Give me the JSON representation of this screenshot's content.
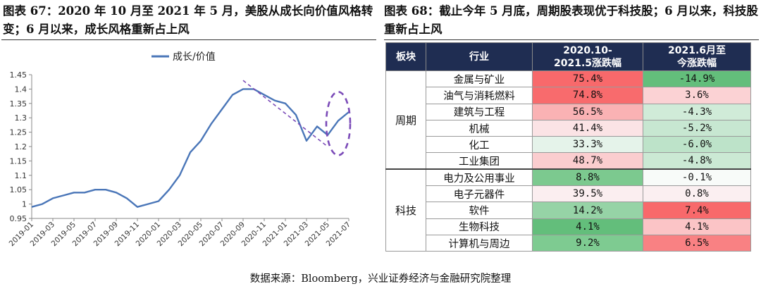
{
  "left_figure": {
    "title": "图表 67：2020 年 10 月至 2021 年 5 月，美股从成长向价值风格转变；6 月以来，成长风格重新占上风"
  },
  "right_figure": {
    "title": "图表 68：截止今年 5 月底，周期股表现优于科技股；6 月以来，科技股重新占上风"
  },
  "chart_data": {
    "type": "line",
    "legend": {
      "position": "top-center",
      "entries": [
        "成长/价值"
      ]
    },
    "x": [
      "2019-01",
      "2019-02",
      "2019-03",
      "2019-04",
      "2019-05",
      "2019-06",
      "2019-07",
      "2019-08",
      "2019-09",
      "2019-10",
      "2019-11",
      "2019-12",
      "2020-01",
      "2020-02",
      "2020-03",
      "2020-04",
      "2020-05",
      "2020-06",
      "2020-07",
      "2020-08",
      "2020-09",
      "2020-10",
      "2020-11",
      "2020-12",
      "2021-01",
      "2021-02",
      "2021-03",
      "2021-04",
      "2021-05",
      "2021-06",
      "2021-07"
    ],
    "series": [
      {
        "name": "成长/价值",
        "color": "#4a76b8",
        "values": [
          0.99,
          1.0,
          1.02,
          1.03,
          1.04,
          1.04,
          1.05,
          1.05,
          1.04,
          1.02,
          0.99,
          1.0,
          1.01,
          1.05,
          1.1,
          1.18,
          1.22,
          1.28,
          1.33,
          1.38,
          1.4,
          1.4,
          1.38,
          1.36,
          1.35,
          1.31,
          1.22,
          1.27,
          1.24,
          1.29,
          1.32
        ]
      }
    ],
    "xlabel": "",
    "ylabel": "",
    "ylim": [
      0.95,
      1.45
    ],
    "yticks": [
      "0.95",
      "1",
      "1.05",
      "1.1",
      "1.15",
      "1.2",
      "1.25",
      "1.3",
      "1.35",
      "1.4",
      "1.45"
    ],
    "xticks": [
      "2019-01",
      "2019-03",
      "2019-05",
      "2019-07",
      "2019-09",
      "2019-11",
      "2020-01",
      "2020-03",
      "2020-05",
      "2020-07",
      "2020-09",
      "2020-11",
      "2021-01",
      "2021-03",
      "2021-05",
      "2021-07"
    ],
    "grid": false,
    "annotations": [
      {
        "type": "dashed-trend-line",
        "color": "#7b4bb8",
        "from": [
          "2020-09",
          1.43
        ],
        "to": [
          "2021-05",
          1.2
        ]
      },
      {
        "type": "dashed-ellipse",
        "color": "#7b4bb8",
        "center": [
          "2021-06",
          1.28
        ],
        "covers": "2021-05 to 2021-07"
      }
    ]
  },
  "table": {
    "headers": [
      "板块",
      "行业",
      "2020.10-\n2021.5涨跌幅",
      "2021.6月至\n今涨跌幅"
    ],
    "groups": [
      {
        "name": "周期",
        "rows": [
          {
            "sector": "金属与矿业",
            "v1": "75.4%",
            "v2": "-14.9%",
            "c1": "#f8696b",
            "c2": "#63be7b"
          },
          {
            "sector": "油气与消耗燃料",
            "v1": "74.8%",
            "v2": "3.6%",
            "c1": "#f86b6d",
            "c2": "#fbd2d4"
          },
          {
            "sector": "建筑与工程",
            "v1": "56.5%",
            "v2": "-4.3%",
            "c1": "#fab2b4",
            "c2": "#d0ebd8"
          },
          {
            "sector": "机械",
            "v1": "41.4%",
            "v2": "-5.2%",
            "c1": "#fbe3e5",
            "c2": "#c7e7d1"
          },
          {
            "sector": "化工",
            "v1": "33.3%",
            "v2": "-6.0%",
            "c1": "#e5f3ea",
            "c2": "#bde3c9"
          },
          {
            "sector": "工业集团",
            "v1": "48.7%",
            "v2": "-4.8%",
            "c1": "#fbcdcf",
            "c2": "#cbe9d4"
          }
        ]
      },
      {
        "name": "科技",
        "rows": [
          {
            "sector": "电力及公用事业",
            "v1": "8.8%",
            "v2": "-0.1%",
            "c1": "#7cc98f",
            "c2": "#f8fbf9"
          },
          {
            "sector": "电子元器件",
            "v1": "39.5%",
            "v2": "0.8%",
            "c1": "#fbeef0",
            "c2": "#fbeff1"
          },
          {
            "sector": "软件",
            "v1": "14.2%",
            "v2": "7.4%",
            "c1": "#96d3a6",
            "c2": "#f8696b"
          },
          {
            "sector": "生物科技",
            "v1": "4.1%",
            "v2": "4.1%",
            "c1": "#63be7b",
            "c2": "#fbc4c6"
          },
          {
            "sector": "计算机与周边",
            "v1": "9.2%",
            "v2": "6.5%",
            "c1": "#7ecb91",
            "c2": "#f98183"
          }
        ]
      }
    ]
  },
  "source": "数据来源：Bloomberg，兴业证券经济与金融研究院整理"
}
